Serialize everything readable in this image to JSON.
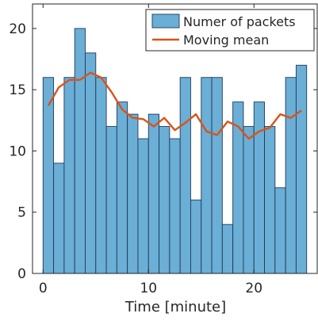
{
  "chart_data": {
    "type": "bar",
    "xlabel": "Time [minute]",
    "ylabel": "",
    "xlim": [
      -1,
      26
    ],
    "ylim": [
      0,
      22
    ],
    "xticks": [
      0,
      10,
      20
    ],
    "yticks": [
      0,
      5,
      10,
      15,
      20
    ],
    "grid": false,
    "legend_position": "top-right",
    "colors": {
      "bars": "#6baed6",
      "bar_edge": "#1f3b57",
      "line": "#d95319",
      "axis": "#262626"
    },
    "series": [
      {
        "name": "Numer of packets",
        "type": "bar",
        "x": [
          0.5,
          1.5,
          2.5,
          3.5,
          4.5,
          5.5,
          6.5,
          7.5,
          8.5,
          9.5,
          10.5,
          11.5,
          12.5,
          13.5,
          14.5,
          15.5,
          16.5,
          17.5,
          18.5,
          19.5,
          20.5,
          21.5,
          22.5,
          23.5,
          24.5
        ],
        "values": [
          16,
          9,
          16,
          20,
          18,
          16,
          12,
          14,
          13,
          11,
          13,
          12,
          11,
          16,
          6,
          16,
          16,
          4,
          14,
          12,
          14,
          12,
          7,
          16,
          17
        ]
      },
      {
        "name": "Moving mean",
        "type": "line",
        "x": [
          0.5,
          1.5,
          2.5,
          3.5,
          4.5,
          5.5,
          6.5,
          7.5,
          8.5,
          9.5,
          10.5,
          11.5,
          12.5,
          13.5,
          14.5,
          15.5,
          16.5,
          17.5,
          18.5,
          19.5,
          20.5,
          21.5,
          22.5,
          23.5,
          24.5
        ],
        "values": [
          13.7,
          15.2,
          15.8,
          15.8,
          16.4,
          16.0,
          14.8,
          13.4,
          12.7,
          12.6,
          12.0,
          12.7,
          11.7,
          12.3,
          13.0,
          11.6,
          11.3,
          12.4,
          12.0,
          11.0,
          11.6,
          11.9,
          13.0,
          12.7,
          13.3
        ]
      }
    ]
  }
}
